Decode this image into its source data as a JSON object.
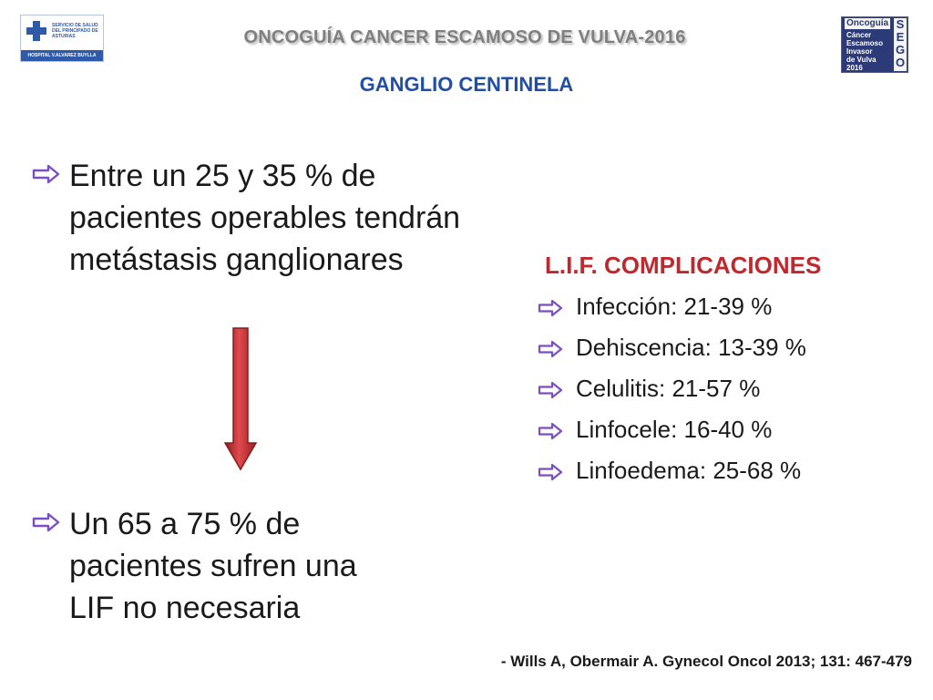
{
  "header": {
    "title": "ONCOGUÍA CANCER ESCAMOSO DE VULVA-2016",
    "subtitle": "GANGLIO CENTINELA",
    "logo_left": {
      "org": "SERVICIO DE SALUD DEL PRINCIPADO DE ASTURIAS",
      "hospital": "HOSPITAL V.ALVAREZ BUYLLA"
    },
    "logo_right": {
      "brand": "Oncoguía",
      "lines": [
        "Cáncer",
        "Escamoso",
        "Invasor",
        "de Vulva",
        "2016"
      ],
      "acronym": [
        "S",
        "E",
        "G",
        "O"
      ]
    }
  },
  "left": {
    "point1": [
      "Entre un 25 y 35 % de",
      "pacientes operables tendrán",
      "metástasis ganglionares"
    ],
    "point2": [
      "Un 65 a 75 % de",
      "pacientes sufren una",
      "LIF no necesaria"
    ]
  },
  "right": {
    "heading": "L.I.F. COMPLICACIONES",
    "items": [
      "Infección: 21-39 %",
      "Dehiscencia: 13-39 %",
      "Celulitis: 21-57 %",
      "Linfocele: 16-40 %",
      "Linfoedema: 25-68 %"
    ]
  },
  "citation": "- Wills A, Obermair A. Gynecol Oncol 2013; 131: 467-479",
  "colors": {
    "bullet_arrow": "#7b4fc4",
    "heading_red": "#c0282d",
    "subtitle_blue": "#1f4fa6",
    "down_arrow": "#c0282d",
    "title_gray": "#7f7f7f"
  },
  "icons": [
    "bullet-arrow-icon",
    "down-arrow-icon",
    "health-service-logo",
    "sego-logo"
  ]
}
